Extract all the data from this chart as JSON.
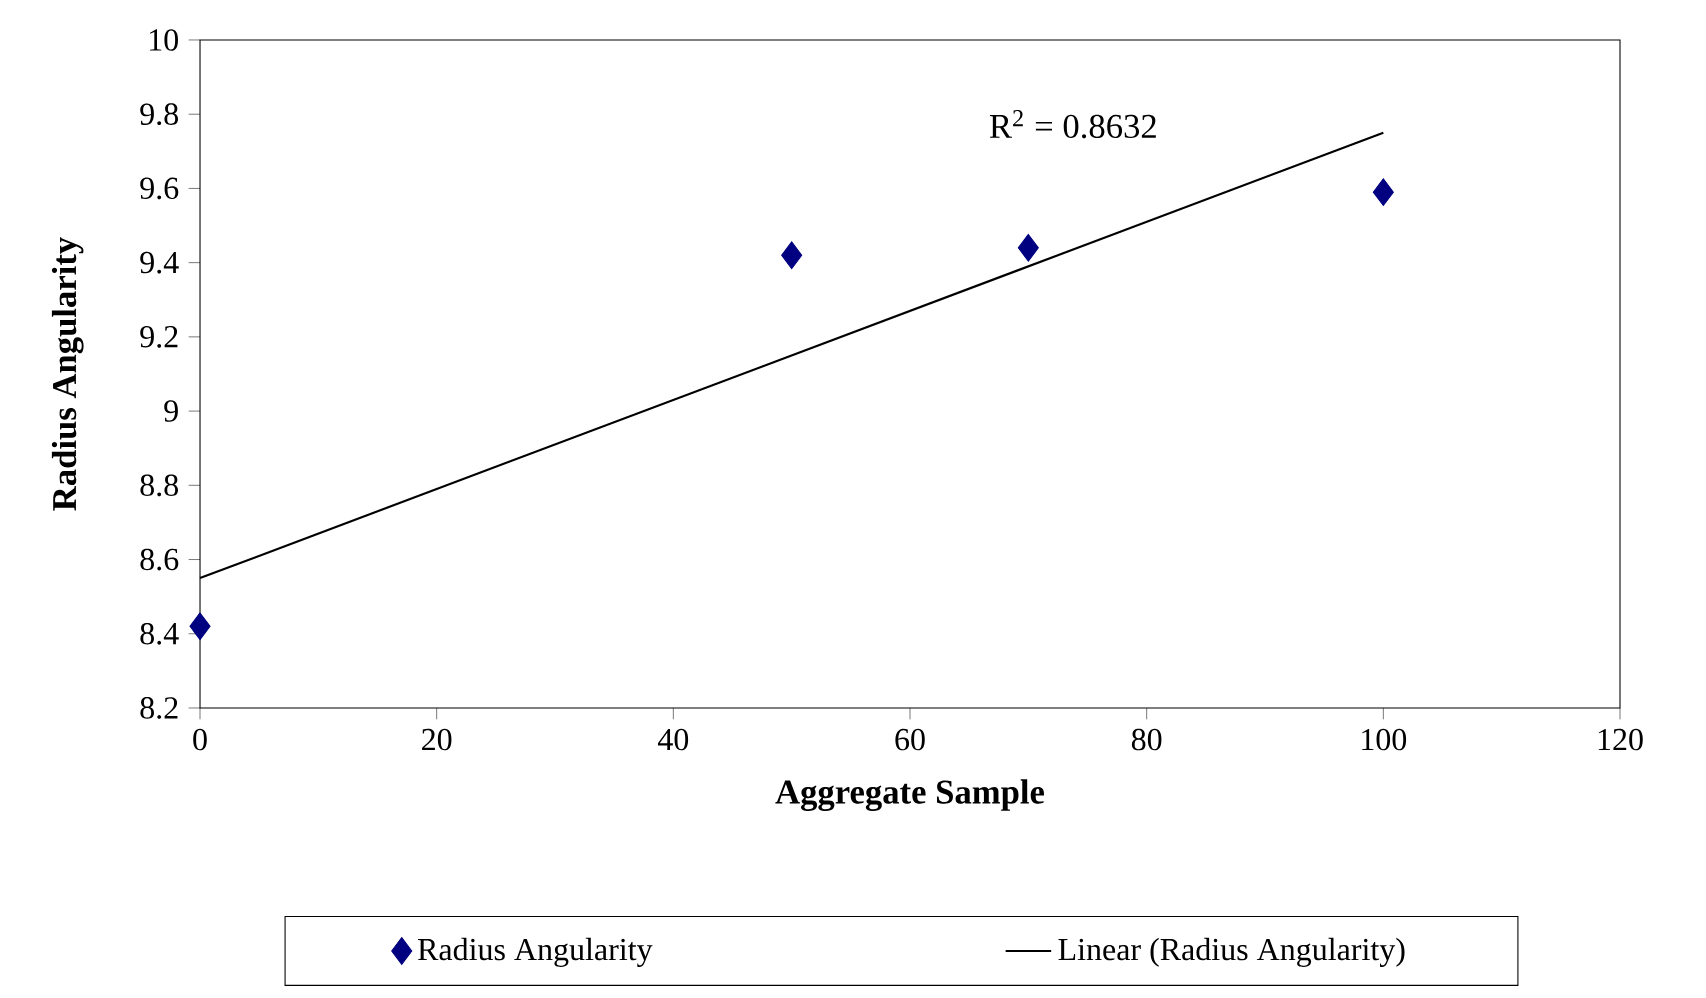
{
  "chart_data": {
    "type": "scatter",
    "xlabel": "Aggregate Sample",
    "ylabel": "Radius Angularity",
    "xlim": [
      0,
      120
    ],
    "xticks": [
      0,
      20,
      40,
      60,
      80,
      100,
      120
    ],
    "ylim": [
      8.2,
      10
    ],
    "yticks": [
      8.2,
      8.4,
      8.6,
      8.8,
      9,
      9.2,
      9.4,
      9.6,
      9.8,
      10
    ],
    "series": [
      {
        "name": "Radius Angularity",
        "color": "#000080",
        "marker": "diamond",
        "x": [
          0,
          50,
          70,
          100
        ],
        "values": [
          8.42,
          9.42,
          9.44,
          9.59
        ]
      },
      {
        "name": "Linear (Radius Angularity)",
        "type": "line",
        "color": "#000000",
        "marker": "none",
        "line_style": "solid",
        "x": [
          0,
          100
        ],
        "values": [
          8.55,
          9.75
        ]
      }
    ],
    "annotations": [
      "R$^{2}$ = 0.8632"
    ],
    "legend": "bottom",
    "grid": false
  }
}
